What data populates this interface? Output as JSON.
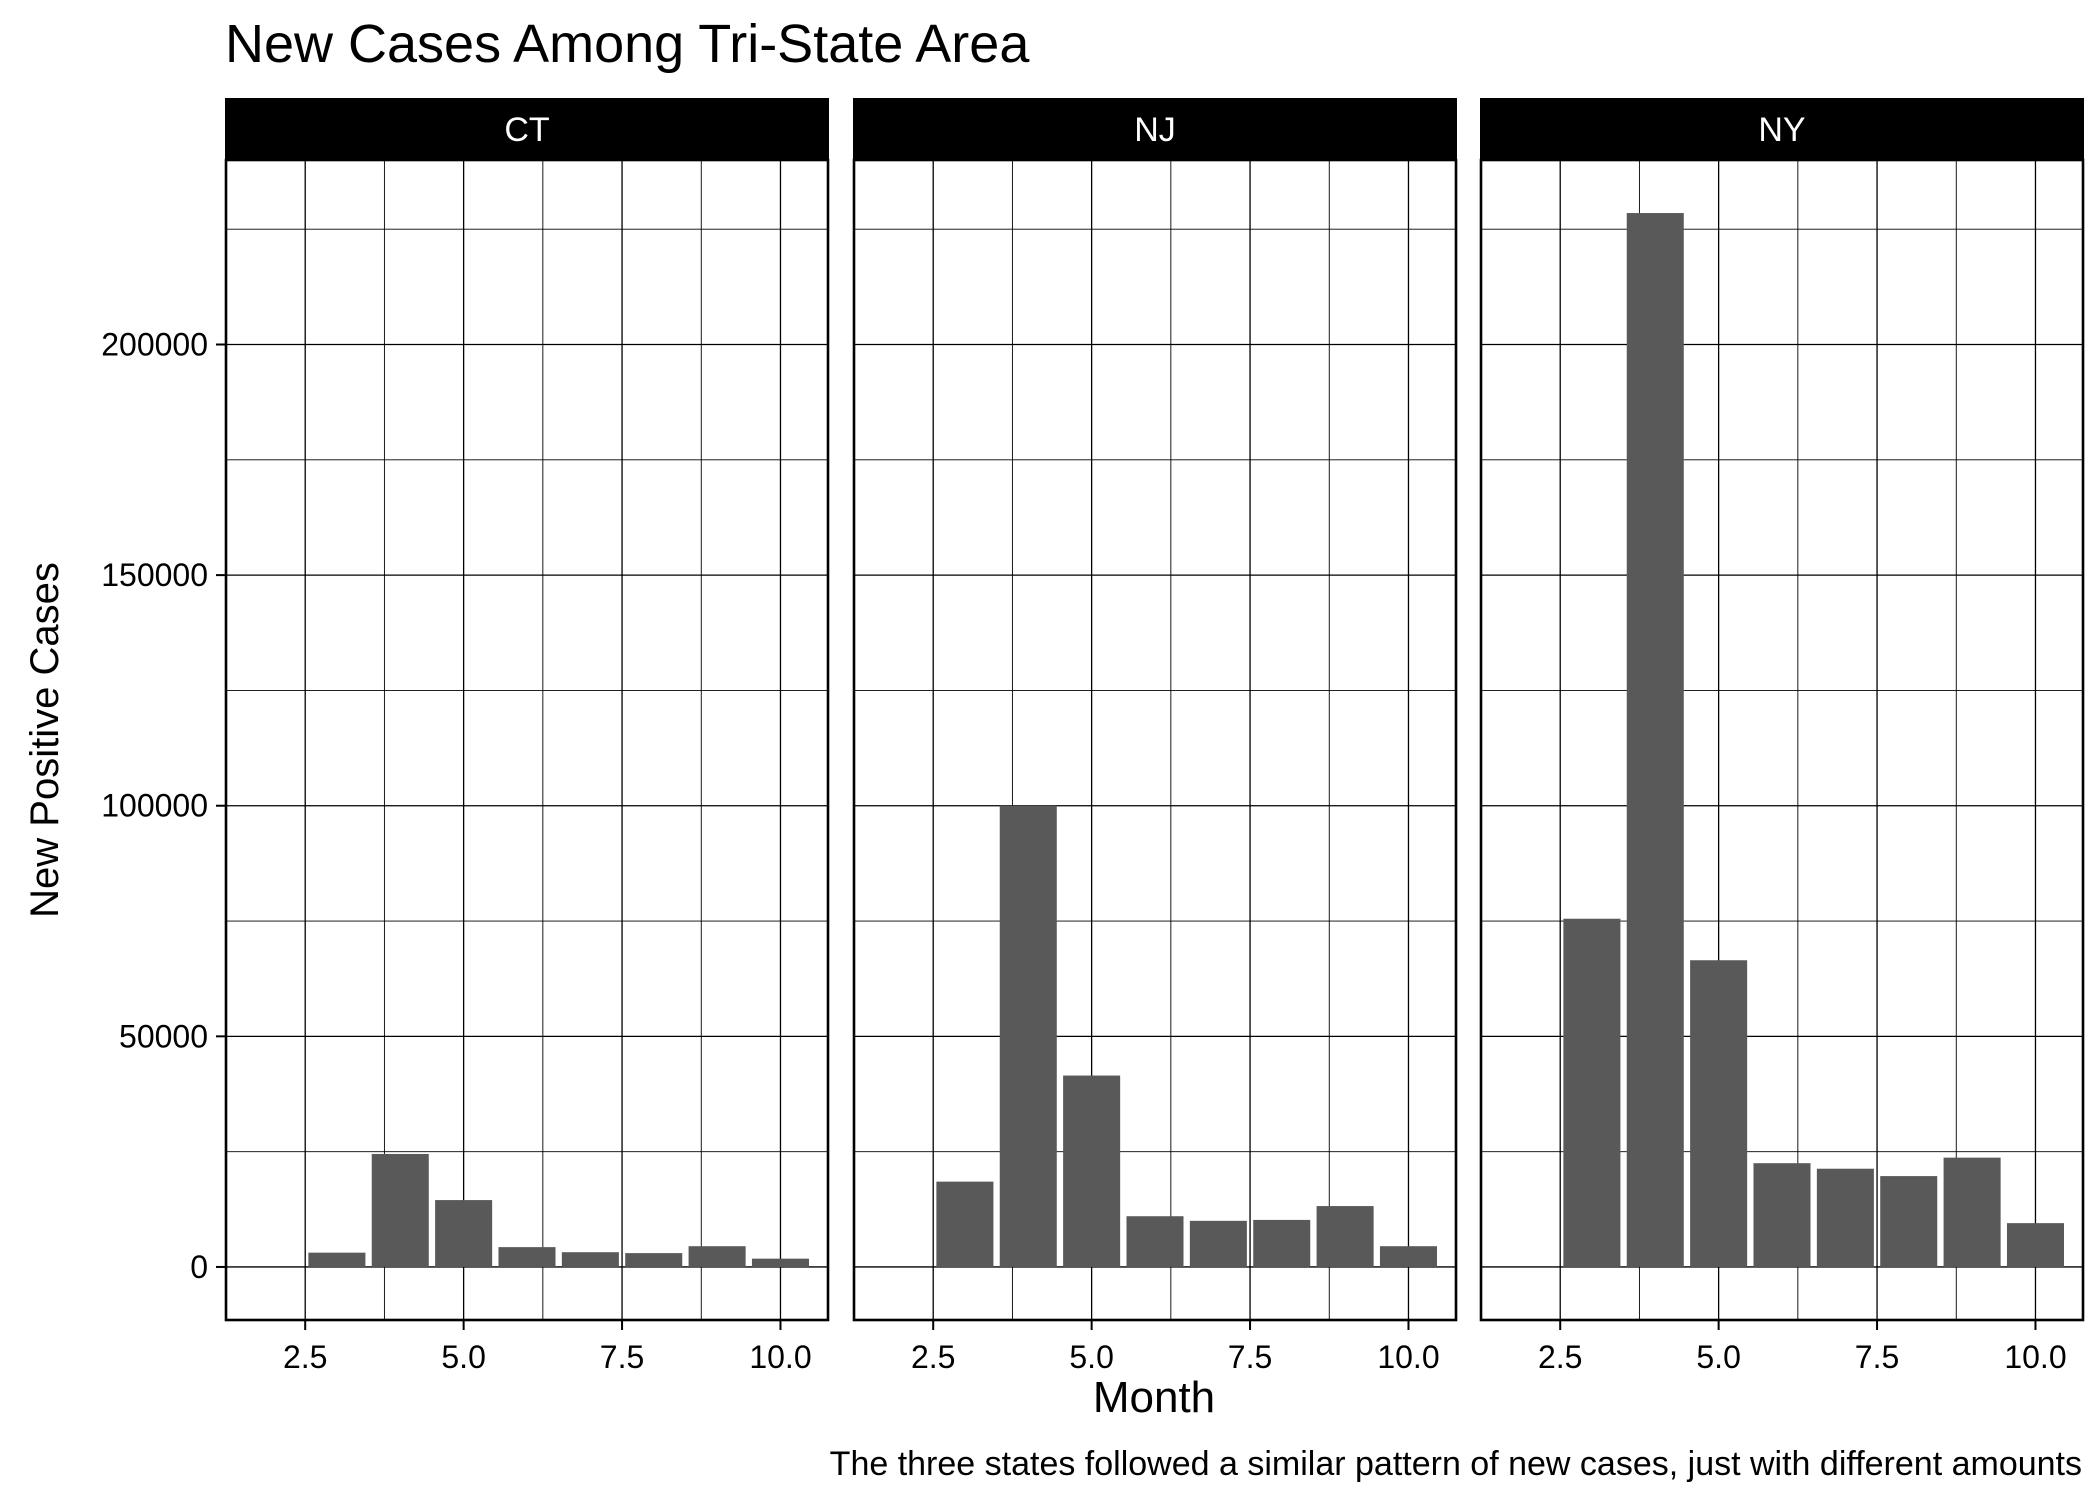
{
  "chart_data": {
    "type": "bar",
    "title": "New Cases Among Tri-State Area",
    "xlabel": "Month",
    "ylabel": "New Positive Cases",
    "caption": "The three states followed a similar pattern of new cases, just with different amounts",
    "grid": true,
    "xlim": [
      1.25,
      10.75
    ],
    "ylim": [
      -11500,
      240000
    ],
    "x_ticks": [
      "2.5",
      "5.0",
      "7.5",
      "10.0"
    ],
    "y_ticks": [
      "0",
      "50000",
      "100000",
      "150000",
      "200000"
    ],
    "months": [
      3,
      4,
      5,
      6,
      7,
      8,
      9,
      10
    ],
    "bar_color": "#595959",
    "panels": [
      {
        "label": "CT",
        "values": [
          3100,
          24500,
          14500,
          4300,
          3200,
          3000,
          4500,
          1800
        ]
      },
      {
        "label": "NJ",
        "values": [
          18500,
          100000,
          41500,
          11000,
          10000,
          10200,
          13200,
          4500
        ]
      },
      {
        "label": "NY",
        "values": [
          75500,
          228500,
          66500,
          22500,
          21300,
          19700,
          23700,
          9500
        ]
      }
    ]
  }
}
